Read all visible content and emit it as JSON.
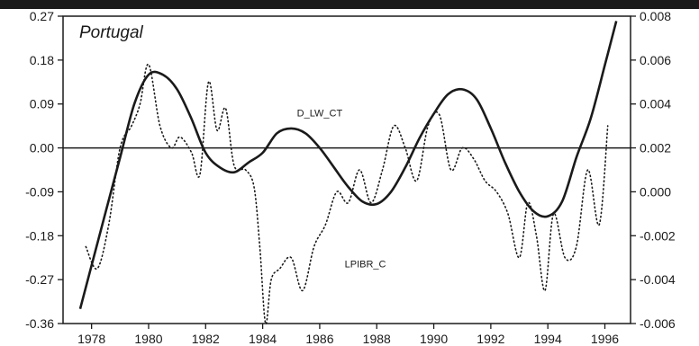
{
  "chart_data": {
    "type": "line",
    "title": "Portugal",
    "xlabel": "",
    "ylabel": "",
    "y2label": "",
    "xlim": [
      1977.0,
      1996.9
    ],
    "ylim": [
      -0.36,
      0.27
    ],
    "y2lim": [
      -0.006,
      0.008
    ],
    "x_ticks": [
      1978,
      1980,
      1982,
      1984,
      1986,
      1988,
      1990,
      1992,
      1994,
      1996
    ],
    "x_tick_labels": [
      "1978",
      "1980",
      "1982",
      "1984",
      "1986",
      "1988",
      "1990",
      "1992",
      "1994",
      "1996"
    ],
    "y_ticks": [
      0.27,
      0.18,
      0.09,
      0.0,
      -0.09,
      -0.18,
      -0.27,
      -0.36
    ],
    "y_tick_labels": [
      "0.27",
      "0.18",
      "0.09",
      "0.00",
      "-0.09",
      "-0.18",
      "-0.27",
      "-0.36"
    ],
    "y2_ticks": [
      0.008,
      0.006,
      0.004,
      0.002,
      0.0,
      -0.002,
      -0.004,
      -0.006
    ],
    "y2_tick_labels": [
      "0.008",
      "0.006",
      "0.004",
      "0.002",
      "0.000",
      "-0.002",
      "-0.004",
      "-0.006"
    ],
    "zero_line": 0.0,
    "grid": false,
    "legend": "none",
    "series": [
      {
        "name": "D_LW_CT",
        "axis": "left",
        "style": "solid",
        "x": [
          1977.6,
          1978.5,
          1979.0,
          1979.5,
          1980.0,
          1980.5,
          1981.0,
          1981.5,
          1982.0,
          1982.5,
          1983.0,
          1983.5,
          1984.0,
          1984.5,
          1985.0,
          1985.5,
          1986.0,
          1986.5,
          1987.0,
          1987.5,
          1988.0,
          1988.5,
          1989.0,
          1989.5,
          1990.0,
          1990.5,
          1991.0,
          1991.5,
          1992.0,
          1992.5,
          1993.0,
          1993.5,
          1994.0,
          1994.5,
          1995.0,
          1995.5,
          1996.0,
          1996.4
        ],
        "y": [
          -0.33,
          -0.13,
          -0.02,
          0.09,
          0.15,
          0.15,
          0.12,
          0.06,
          -0.01,
          -0.04,
          -0.05,
          -0.03,
          -0.01,
          0.03,
          0.04,
          0.03,
          0.0,
          -0.04,
          -0.08,
          -0.11,
          -0.115,
          -0.09,
          -0.04,
          0.02,
          0.07,
          0.11,
          0.12,
          0.1,
          0.04,
          -0.03,
          -0.09,
          -0.13,
          -0.14,
          -0.11,
          -0.02,
          0.06,
          0.17,
          0.26
        ]
      },
      {
        "name": "LPIBR_C",
        "axis": "right",
        "style": "dotted",
        "x": [
          1977.8,
          1978.2,
          1978.6,
          1979.0,
          1979.4,
          1979.7,
          1980.0,
          1980.4,
          1980.8,
          1981.1,
          1981.5,
          1981.8,
          1982.1,
          1982.4,
          1982.7,
          1983.0,
          1983.4,
          1983.7,
          1983.9,
          1984.1,
          1984.3,
          1984.6,
          1985.0,
          1985.4,
          1985.8,
          1986.2,
          1986.6,
          1987.0,
          1987.4,
          1987.8,
          1988.2,
          1988.6,
          1989.0,
          1989.4,
          1989.8,
          1990.2,
          1990.6,
          1991.0,
          1991.4,
          1991.8,
          1992.2,
          1992.6,
          1993.0,
          1993.3,
          1993.6,
          1993.9,
          1994.2,
          1994.6,
          1995.0,
          1995.4,
          1995.8,
          1996.1
        ],
        "y": [
          -0.0025,
          -0.0035,
          -0.0015,
          0.002,
          0.003,
          0.004,
          0.0058,
          0.003,
          0.002,
          0.0025,
          0.0018,
          0.0008,
          0.005,
          0.0028,
          0.0038,
          0.0012,
          0.001,
          0.0002,
          -0.0025,
          -0.006,
          -0.004,
          -0.0035,
          -0.003,
          -0.0045,
          -0.0025,
          -0.0015,
          0.0,
          -0.0005,
          0.001,
          -0.0005,
          0.001,
          0.003,
          0.002,
          0.0005,
          0.003,
          0.0035,
          0.001,
          0.002,
          0.0015,
          0.0005,
          0.0,
          -0.001,
          -0.003,
          -0.0005,
          -0.002,
          -0.0045,
          -0.001,
          -0.003,
          -0.0025,
          0.001,
          -0.0015,
          0.003
        ]
      }
    ],
    "annotations": [
      {
        "text": "D_LW_CT",
        "x": 1986.0,
        "y": 0.065
      },
      {
        "text": "LPIBR_C",
        "x": 1987.6,
        "y": -0.245
      }
    ]
  }
}
